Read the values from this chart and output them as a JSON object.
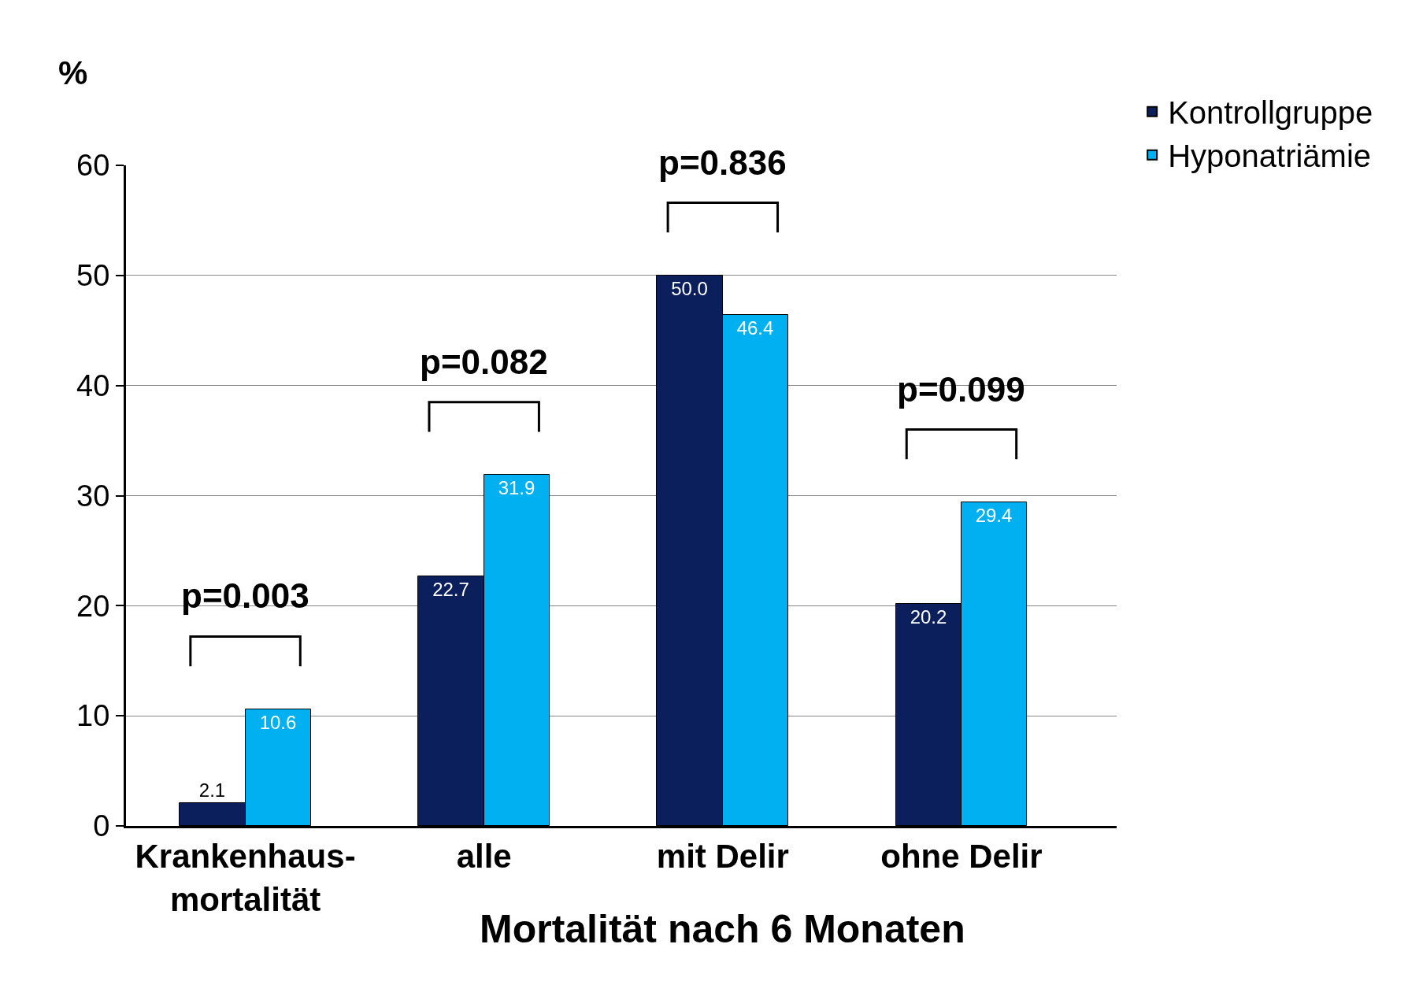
{
  "chart_data": {
    "type": "bar",
    "ylabel": "%",
    "xlabel": "Mortalität nach 6 Monaten",
    "categories": [
      "Krankenhaus-\nmortalität",
      "alle",
      "mit Delir",
      "ohne Delir"
    ],
    "series": [
      {
        "name": "Kontrollgruppe",
        "color": "#0b1f5c",
        "values": [
          2.1,
          22.7,
          50.0,
          20.2
        ],
        "value_labels": [
          "2.1",
          "22.7",
          "50.0",
          "20.2"
        ]
      },
      {
        "name": "Hyponatriämie",
        "color": "#00b0f0",
        "values": [
          10.6,
          31.9,
          46.4,
          29.4
        ],
        "value_labels": [
          "10.6",
          "31.9",
          "46.4",
          "29.4"
        ]
      }
    ],
    "ylim": [
      0,
      60
    ],
    "yticks": [
      0,
      10,
      20,
      30,
      40,
      50,
      60
    ],
    "grid": "y",
    "legend": "top right",
    "annotations": [
      "p=0.003",
      "p=0.082",
      "p=0.836",
      "p=0.099"
    ]
  }
}
